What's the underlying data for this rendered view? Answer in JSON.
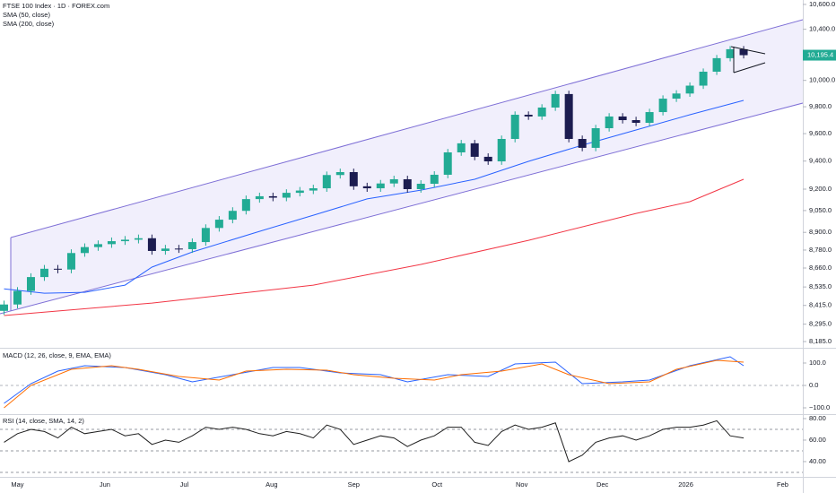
{
  "chart_data": [
    {
      "type": "candlestick",
      "title": "FTSE 100 Index · 1D · FOREX.com",
      "log_scale": true,
      "up_color": "#22ab94",
      "down_color": "#1c1c50",
      "xlim": [
        -0.3,
        59.4
      ],
      "xticks": [
        {
          "value": 1,
          "label": "May"
        },
        {
          "value": 7.5,
          "label": "Jun"
        },
        {
          "value": 13.4,
          "label": "Jul"
        },
        {
          "value": 19.9,
          "label": "Aug"
        },
        {
          "value": 26,
          "label": "Sep"
        },
        {
          "value": 32.2,
          "label": "Oct"
        },
        {
          "value": 38.5,
          "label": "Nov"
        },
        {
          "value": 44.5,
          "label": "Dec"
        },
        {
          "value": 50.7,
          "label": "2026"
        },
        {
          "value": 57.9,
          "label": "Feb"
        }
      ],
      "ylim": [
        8146,
        10636
      ],
      "yticks": [
        {
          "value": 10600,
          "label": "10,600.0"
        },
        {
          "value": 10400,
          "label": "10,400.0"
        },
        {
          "value": 10000,
          "label": "10,000.0"
        },
        {
          "value": 9800,
          "label": "9,800.0"
        },
        {
          "value": 9600,
          "label": "9,600.0"
        },
        {
          "value": 9400,
          "label": "9,400.0"
        },
        {
          "value": 9200,
          "label": "9,200.0"
        },
        {
          "value": 9050,
          "label": "9,050.0"
        },
        {
          "value": 8900,
          "label": "8,900.0"
        },
        {
          "value": 8780,
          "label": "8,780.0"
        },
        {
          "value": 8660,
          "label": "8,660.0"
        },
        {
          "value": 8535,
          "label": "8,535.0"
        },
        {
          "value": 8415,
          "label": "8,415.0"
        },
        {
          "value": 8295,
          "label": "8,295.0"
        },
        {
          "value": 8185,
          "label": "8,185.0"
        }
      ],
      "open": [
        8380,
        8421,
        8509,
        8600,
        8655,
        8650,
        8760,
        8800,
        8820,
        8840,
        8850,
        8860,
        8774,
        8790,
        8786,
        8834,
        8930,
        8987,
        9048,
        9130,
        9150,
        9140,
        9174,
        9190,
        9206,
        9300,
        9321,
        9220,
        9206,
        9240,
        9270,
        9200,
        9238,
        9302,
        9463,
        9529,
        9431,
        9398,
        9561,
        9740,
        9727,
        9794,
        9896,
        9561,
        9496,
        9640,
        9727,
        9700,
        9680,
        9760,
        9861,
        9900,
        9960,
        10067,
        10172,
        10242
      ],
      "high": [
        8446,
        8534,
        8625,
        8680,
        8680,
        8785,
        8825,
        8845,
        8865,
        8875,
        8885,
        8885,
        8815,
        8815,
        8859,
        8955,
        9012,
        9073,
        9155,
        9175,
        9175,
        9199,
        9215,
        9231,
        9325,
        9346,
        9346,
        9245,
        9265,
        9295,
        9295,
        9263,
        9327,
        9488,
        9554,
        9554,
        9456,
        9586,
        9765,
        9765,
        9819,
        9921,
        9921,
        9586,
        9665,
        9752,
        9752,
        9725,
        9785,
        9886,
        9925,
        9985,
        10092,
        10197,
        10267,
        10267
      ],
      "low": [
        8355,
        8396,
        8484,
        8575,
        8625,
        8625,
        8735,
        8775,
        8795,
        8815,
        8825,
        8749,
        8749,
        8761,
        8761,
        8809,
        8905,
        8962,
        9023,
        9105,
        9115,
        9115,
        9149,
        9165,
        9181,
        9275,
        9195,
        9181,
        9181,
        9215,
        9175,
        9175,
        9213,
        9277,
        9438,
        9406,
        9373,
        9373,
        9536,
        9702,
        9702,
        9769,
        9536,
        9471,
        9471,
        9615,
        9675,
        9655,
        9655,
        9735,
        9836,
        9875,
        9935,
        10042,
        10147,
        10170
      ],
      "close": [
        8421,
        8509,
        8600,
        8655,
        8650,
        8760,
        8800,
        8820,
        8840,
        8850,
        8860,
        8774,
        8790,
        8786,
        8834,
        8930,
        8987,
        9048,
        9130,
        9150,
        9140,
        9174,
        9190,
        9206,
        9300,
        9321,
        9220,
        9206,
        9240,
        9270,
        9200,
        9238,
        9302,
        9463,
        9529,
        9431,
        9398,
        9561,
        9740,
        9727,
        9794,
        9896,
        9561,
        9496,
        9640,
        9727,
        9700,
        9680,
        9760,
        9861,
        9900,
        9960,
        10067,
        10172,
        10242,
        10195.4
      ],
      "last_price_label": "10,195.4",
      "series": [
        {
          "name": "SMA (50, close)",
          "color": "#2962ff",
          "x": [
            0,
            3,
            6,
            9,
            11,
            14,
            19,
            23,
            27,
            31,
            35,
            39,
            43,
            47,
            51,
            55
          ],
          "values": [
            8523,
            8494,
            8500,
            8547,
            8666,
            8767,
            8907,
            9018,
            9131,
            9193,
            9270,
            9398,
            9515,
            9627,
            9740,
            9848
          ]
        },
        {
          "name": "SMA (200, close)",
          "color": "#f23645",
          "x": [
            0,
            11,
            23,
            31,
            39,
            47,
            51,
            55
          ],
          "values": [
            8350,
            8430,
            8547,
            8684,
            8846,
            9030,
            9112,
            9270
          ]
        }
      ]
    },
    {
      "type": "line",
      "title": "MACD (12, 26, close, 9, EMA, EMA)",
      "ylim": [
        -128,
        160
      ],
      "yticks": [
        {
          "value": 100,
          "label": "100.0"
        },
        {
          "value": 0,
          "label": "0.0"
        },
        {
          "value": -100,
          "label": "−100.0"
        }
      ],
      "series": [
        {
          "color": "#2962ff",
          "x": [
            0,
            2,
            4,
            6,
            9,
            12,
            14,
            17,
            20,
            22,
            25,
            28,
            30,
            33,
            36,
            38,
            41,
            43,
            46,
            48,
            51,
            54,
            55
          ],
          "values": [
            -80,
            8,
            64,
            88,
            80,
            48,
            16,
            48,
            80,
            80,
            56,
            48,
            16,
            48,
            40,
            96,
            104,
            8,
            16,
            24,
            88,
            128,
            88
          ]
        },
        {
          "color": "#ff6d00",
          "x": [
            0,
            2,
            5,
            8,
            10,
            13,
            16,
            18,
            21,
            24,
            26,
            29,
            32,
            34,
            37,
            40,
            42,
            45,
            48,
            50,
            53,
            55
          ],
          "values": [
            -100,
            0,
            72,
            88,
            72,
            40,
            24,
            64,
            72,
            68,
            48,
            32,
            24,
            48,
            64,
            96,
            48,
            8,
            16,
            72,
            112,
            104
          ]
        }
      ]
    },
    {
      "type": "line",
      "title": "RSI (14, close, SMA, 14, 2)",
      "ylim": [
        25.8,
        82.5
      ],
      "yticks": [
        {
          "value": 80,
          "label": "80.00"
        },
        {
          "value": 60,
          "label": "60.00"
        },
        {
          "value": 40,
          "label": "40.00"
        }
      ],
      "levels": [
        70,
        50,
        30
      ],
      "series": [
        {
          "color": "#1f1f1f",
          "x": [
            0,
            1,
            2,
            3,
            4,
            5,
            6,
            7,
            8,
            9,
            10,
            11,
            12,
            13,
            14,
            15,
            16,
            17,
            18,
            19,
            20,
            21,
            22,
            23,
            24,
            25,
            26,
            27,
            28,
            29,
            30,
            31,
            32,
            33,
            34,
            35,
            36,
            37,
            38,
            39,
            40,
            41,
            42,
            43,
            44,
            45,
            46,
            47,
            48,
            49,
            50,
            51,
            52,
            53,
            54,
            55
          ],
          "values": [
            58,
            66,
            70,
            68,
            62,
            72,
            66,
            68,
            70,
            64,
            66,
            56,
            60,
            58,
            64,
            72,
            70,
            72,
            70,
            66,
            64,
            68,
            66,
            62,
            74,
            70,
            56,
            60,
            64,
            62,
            54,
            60,
            64,
            72,
            72,
            58,
            55,
            68,
            74,
            70,
            72,
            76,
            40,
            46,
            58,
            62,
            64,
            60,
            64,
            70,
            72,
            72,
            74,
            78,
            64,
            62
          ]
        }
      ]
    }
  ]
}
